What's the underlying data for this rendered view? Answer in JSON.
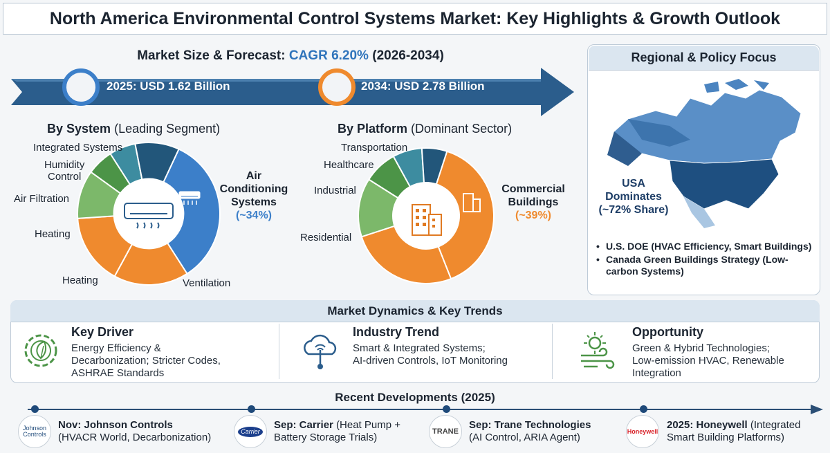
{
  "title": "North America Environmental Control Systems Market: Key Highlights & Growth Outlook",
  "forecast": {
    "heading_prefix": "Market Size & Forecast:",
    "cagr_text": "CAGR 6.20%",
    "period": "(2026-2034)",
    "start_label": "2025: USD 1.62 Billion",
    "end_label": "2034: USD 2.78 Billion"
  },
  "by_system": {
    "title_bold": "By System",
    "title_rest": "(Leading Segment)",
    "labels": {
      "integrated": "Integrated Systems",
      "humidity1": "Humidity",
      "humidity2": "Control",
      "filtration": "Air Filtration",
      "heating_a": "Heating",
      "heating_b": "Heating",
      "ventilation": "Ventilation"
    },
    "callout_lines": [
      "Air",
      "Conditioning",
      "Systems"
    ],
    "callout_share": "(~34%)"
  },
  "by_platform": {
    "title_bold": "By Platform",
    "title_rest": "(Dominant Sector)",
    "labels": {
      "transportation": "Transportation",
      "healthcare": "Healthcare",
      "industrial": "Industrial",
      "residential": "Residential"
    },
    "callout_lines": [
      "Commercial",
      "Buildings"
    ],
    "callout_share": "(~39%)"
  },
  "chart_data": [
    {
      "type": "pie",
      "title": "By System (Leading Segment)",
      "categories": [
        "Air Conditioning Systems",
        "Ventilation",
        "Heating",
        "Heating",
        "Air Filtration",
        "Humidity Control",
        "Integrated Systems"
      ],
      "values": [
        34,
        17,
        16,
        11,
        6,
        6,
        10
      ]
    },
    {
      "type": "pie",
      "title": "By Platform (Dominant Sector)",
      "categories": [
        "Commercial Buildings",
        "Residential",
        "Residential",
        "Industrial",
        "Healthcare",
        "Transportation"
      ],
      "values": [
        39,
        26,
        14,
        8,
        7,
        6
      ]
    }
  ],
  "colors": {
    "blue": "#3c7fc9",
    "orange": "#ef8a2e",
    "green": "#7cb86a",
    "dark_green": "#4c9447",
    "teal": "#3d8ca0",
    "navy": "#22567a",
    "arrow": "#2b5d8c"
  },
  "regional": {
    "heading": "Regional & Policy Focus",
    "usa_lines": [
      "USA",
      "Dominates",
      "(~72% Share)"
    ],
    "policies": [
      "U.S. DOE (HVAC Efficiency, Smart Buildings)",
      "Canada Green Buildings Strategy (Low-carbon Systems)"
    ]
  },
  "dynamics": {
    "heading": "Market Dynamics & Key Trends",
    "driver": {
      "title": "Key Driver",
      "lines": [
        "Energy Efficiency &",
        "Decarbonization; Stricter Codes,",
        "ASHRAE Standards"
      ],
      "icon": "gear-leaf-icon"
    },
    "trend": {
      "title": "Industry Trend",
      "lines": [
        "Smart & Integrated Systems;",
        "AI-driven Controls, IoT Monitoring"
      ],
      "icon": "cloud-sensor-icon"
    },
    "opportunity": {
      "title": "Opportunity",
      "lines": [
        "Green & Hybrid Technologies;",
        "Low-emission HVAC, Renewable",
        "Integration"
      ],
      "icon": "sun-wind-icon"
    }
  },
  "developments": {
    "heading": "Recent Developments (2025)",
    "items": [
      {
        "logo": "Johnson Controls",
        "bold": "Nov: Johnson Controls",
        "rest": "",
        "line2": "(HVACR World, Decarbonization)"
      },
      {
        "logo": "Carrier",
        "bold": "Sep: Carrier",
        "rest": " (Heat Pump +",
        "line2": "Battery Storage Trials)"
      },
      {
        "logo": "TRANE",
        "bold": "Sep: Trane Technologies",
        "rest": "",
        "line2": "(AI Control, ARIA Agent)"
      },
      {
        "logo": "Honeywell",
        "bold": "2025: Honeywell",
        "rest": " (Integrated",
        "line2": "Smart Building Platforms)"
      }
    ]
  }
}
